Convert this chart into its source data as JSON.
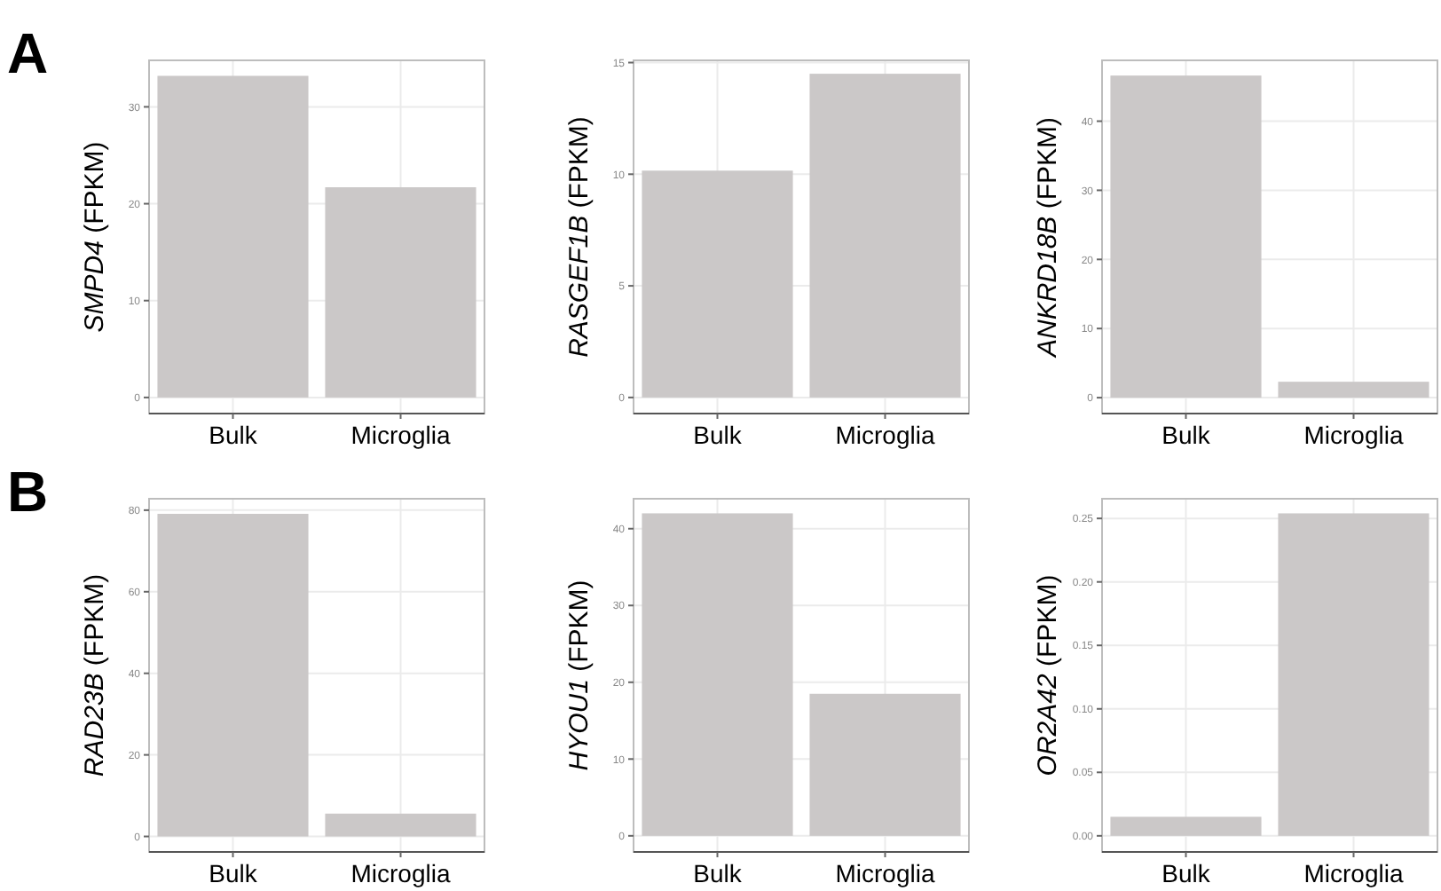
{
  "chart_data": [
    {
      "type": "bar",
      "annotations": [
        "A"
      ],
      "ylabel": "SMPD4 (FPKM)",
      "categories": [
        "Bulk",
        "Microglia"
      ],
      "values": [
        33.2,
        21.7
      ],
      "color": "#cbc8c8",
      "ylim": [
        -1.66,
        34.8
      ],
      "yticks": [
        0,
        10,
        20,
        30
      ],
      "grid": true
    },
    {
      "type": "bar",
      "ylabel": "RASGEF1B (FPKM)",
      "categories": [
        "Bulk",
        "Microglia"
      ],
      "values": [
        10.16,
        14.5
      ],
      "color": "#cbc8c8",
      "ylim": [
        -0.72,
        15.1
      ],
      "yticks": [
        0,
        5,
        10,
        15
      ],
      "grid": true
    },
    {
      "type": "bar",
      "ylabel": "ANKRD18B (FPKM)",
      "categories": [
        "Bulk",
        "Microglia"
      ],
      "values": [
        46.6,
        2.3
      ],
      "color": "#cbc8c8",
      "ylim": [
        -2.3,
        48.8
      ],
      "yticks": [
        0,
        10,
        20,
        30,
        40
      ],
      "grid": true
    },
    {
      "type": "bar",
      "annotations": [
        "B"
      ],
      "ylabel": "RAD23B (FPKM)",
      "categories": [
        "Bulk",
        "Microglia"
      ],
      "values": [
        79.1,
        5.6
      ],
      "color": "#cbc8c8",
      "ylim": [
        -3.8,
        82.8
      ],
      "yticks": [
        0,
        20,
        40,
        60,
        80
      ],
      "grid": true
    },
    {
      "type": "bar",
      "ylabel": "HYOU1 (FPKM)",
      "categories": [
        "Bulk",
        "Microglia"
      ],
      "values": [
        42.0,
        18.5
      ],
      "color": "#cbc8c8",
      "ylim": [
        -2.1,
        43.9
      ],
      "yticks": [
        0,
        10,
        20,
        30,
        40
      ],
      "grid": true
    },
    {
      "type": "bar",
      "ylabel": "OR2A42 (FPKM)",
      "categories": [
        "Bulk",
        "Microglia"
      ],
      "values": [
        0.015,
        0.254
      ],
      "color": "#cbc8c8",
      "ylim": [
        -0.0127,
        0.2655
      ],
      "yticks": [
        {
          "value": 0,
          "label": "0.00"
        },
        {
          "value": 0.05,
          "label": "0.05"
        },
        {
          "value": 0.1,
          "label": "0.10"
        },
        {
          "value": 0.15,
          "label": "0.15"
        },
        {
          "value": 0.2,
          "label": "0.20"
        },
        {
          "value": 0.25,
          "label": "0.25"
        }
      ],
      "grid": true
    }
  ]
}
